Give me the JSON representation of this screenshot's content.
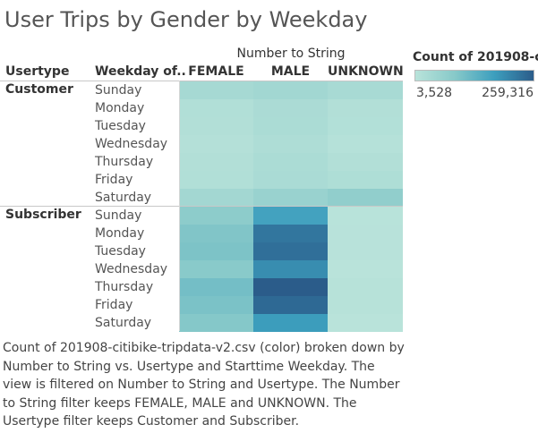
{
  "title": "User Trips by Gender by Weekday",
  "caption": "Count of 201908-citibike-tripdata-v2.csv (color) broken down by Number to String vs. Usertype and Starttime Weekday. The view is filtered on Number to String and Usertype. The Number to String filter keeps FEMALE, MALE and UNKNOWN. The Usertype filter keeps Customer and Subscriber.",
  "colors": {
    "low": "#b9e3da",
    "high": "#2b5c8a"
  },
  "chart_data": {
    "type": "heatmap",
    "title": "User Trips by Gender by Weekday",
    "column_group_label": "Number to String",
    "row_headers": [
      "Usertype",
      "Weekday of.."
    ],
    "columns": [
      "FEMALE",
      "MALE",
      "UNKNOWN"
    ],
    "groups": [
      {
        "name": "Customer",
        "rows": [
          {
            "label": "Sunday",
            "values": [
              28000,
              33000,
              25000
            ]
          },
          {
            "label": "Monday",
            "values": [
              14000,
              22000,
              13000
            ]
          },
          {
            "label": "Tuesday",
            "values": [
              13000,
              21000,
              12000
            ]
          },
          {
            "label": "Wednesday",
            "values": [
              10000,
              18000,
              9000
            ]
          },
          {
            "label": "Thursday",
            "values": [
              13000,
              21000,
              13000
            ]
          },
          {
            "label": "Friday",
            "values": [
              14000,
              23000,
              17000
            ]
          },
          {
            "label": "Saturday",
            "values": [
              32000,
              45000,
              55000
            ]
          }
        ]
      },
      {
        "name": "Subscriber",
        "rows": [
          {
            "label": "Sunday",
            "values": [
              60000,
              150000,
              4500
            ]
          },
          {
            "label": "Monday",
            "values": [
              75000,
              220000,
              5000
            ]
          },
          {
            "label": "Tuesday",
            "values": [
              80000,
              230000,
              5000
            ]
          },
          {
            "label": "Wednesday",
            "values": [
              65000,
              185000,
              4000
            ]
          },
          {
            "label": "Thursday",
            "values": [
              90000,
              259316,
              5500
            ]
          },
          {
            "label": "Friday",
            "values": [
              82000,
              240000,
              5500
            ]
          },
          {
            "label": "Saturday",
            "values": [
              70000,
              160000,
              3528
            ]
          }
        ]
      }
    ],
    "legend": {
      "title": "Count of 201908-c..",
      "min_label": "3,528",
      "max_label": "259,316",
      "min": 3528,
      "max": 259316,
      "placement": "top-right"
    }
  }
}
